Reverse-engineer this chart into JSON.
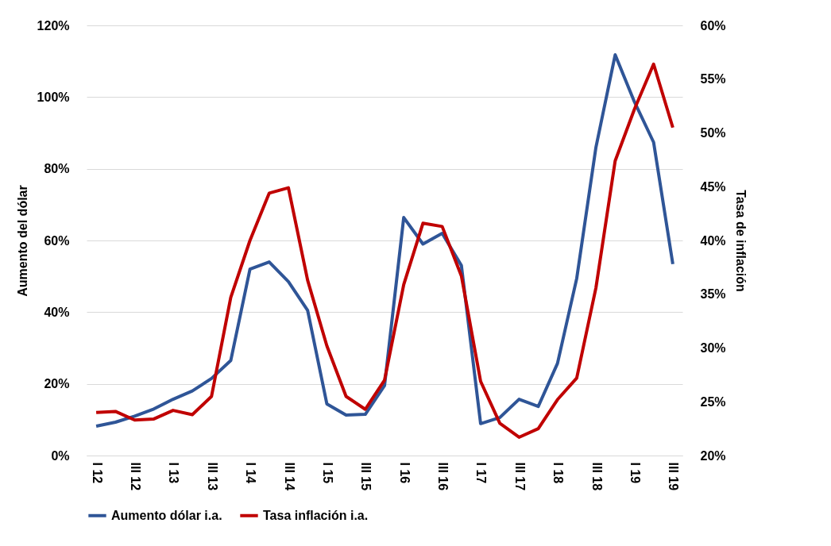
{
  "chart_data": {
    "type": "line",
    "ylabel": "Aumento del dólar",
    "y2label": "Tasa de inflación",
    "categories": [
      "I 12",
      null,
      "III 12",
      null,
      "I 13",
      null,
      "III 13",
      null,
      "I 14",
      null,
      "III 14",
      null,
      "I 15",
      null,
      "III 15",
      null,
      "I 16",
      null,
      "III 16",
      null,
      "I 17",
      null,
      "III 17",
      null,
      "I 18",
      null,
      "III 18",
      null,
      "I 19",
      null,
      "III 19"
    ],
    "series": [
      {
        "name": "Aumento dólar i.a.",
        "color": "#2f5597",
        "values": [
          8.2,
          9.3,
          11,
          13,
          15.7,
          18,
          21.5,
          26.5,
          52,
          54,
          48.5,
          40.5,
          14.4,
          11.3,
          11.5,
          19.5,
          66.4,
          59,
          62,
          53,
          8.9,
          10.6,
          15.7,
          13.7,
          25.7,
          49.4,
          86,
          111.8,
          98.7,
          87.4,
          53.4
        ]
      },
      {
        "name": "Tasa inflación i.a.",
        "color": "#c00000",
        "axis": "y2",
        "values": [
          24.0,
          24.1,
          23.3,
          23.4,
          24.2,
          23.8,
          25.5,
          34.7,
          40.0,
          44.4,
          44.9,
          36.3,
          30.2,
          25.5,
          24.3,
          27.0,
          35.9,
          41.6,
          41.3,
          36.7,
          26.9,
          23.0,
          21.7,
          22.5,
          25.2,
          27.2,
          35.6,
          47.4,
          52.2,
          56.4,
          50.5
        ]
      }
    ],
    "ylim": [
      0,
      120
    ],
    "yticks": [
      {
        "value": 0,
        "label": "0%"
      },
      {
        "value": 20,
        "label": "20%"
      },
      {
        "value": 40,
        "label": "40%"
      },
      {
        "value": 60,
        "label": "60%"
      },
      {
        "value": 80,
        "label": "80%"
      },
      {
        "value": 100,
        "label": "100%"
      },
      {
        "value": 120,
        "label": "120%"
      }
    ],
    "y2lim": [
      20,
      60
    ],
    "y2ticks": [
      {
        "value": 20,
        "label": "20%"
      },
      {
        "value": 25,
        "label": "25%"
      },
      {
        "value": 30,
        "label": "30%"
      },
      {
        "value": 35,
        "label": "35%"
      },
      {
        "value": 40,
        "label": "40%"
      },
      {
        "value": 45,
        "label": "45%"
      },
      {
        "value": 50,
        "label": "50%"
      },
      {
        "value": 55,
        "label": "55%"
      },
      {
        "value": 60,
        "label": "60%"
      }
    ],
    "grid": "y",
    "legend": "bottom",
    "line_style": "solid",
    "marker": "none"
  }
}
